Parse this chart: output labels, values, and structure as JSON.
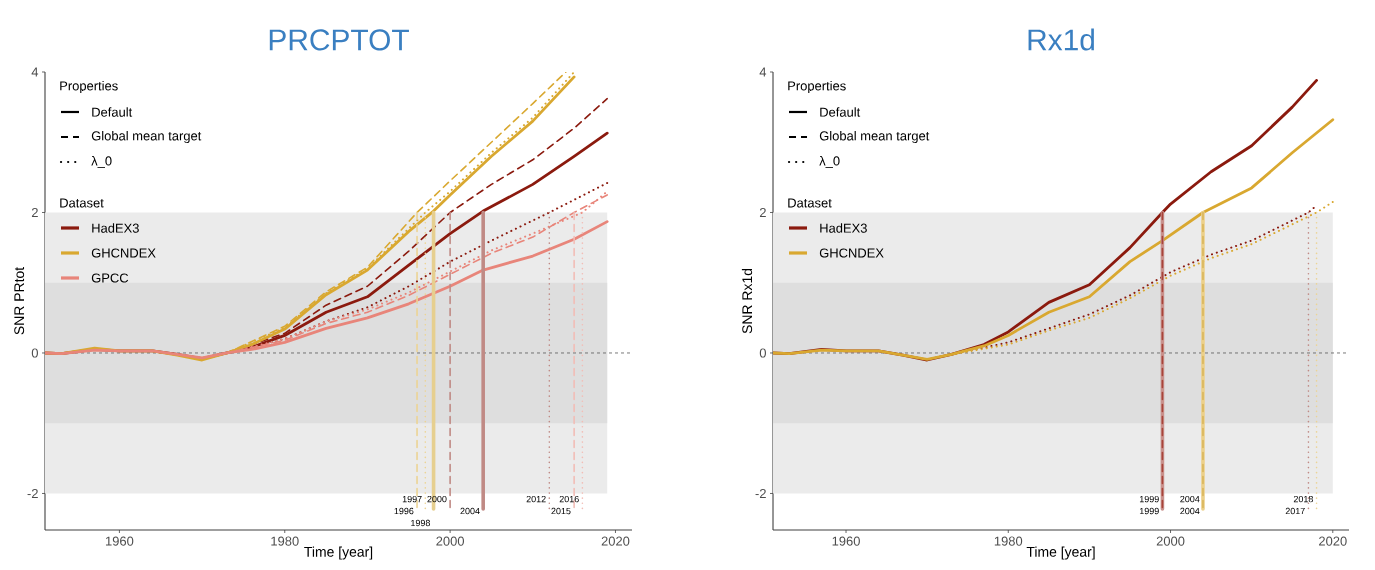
{
  "chart_data": [
    {
      "type": "line",
      "title": "PRCPTOT",
      "xlabel": "Time [year]",
      "ylabel": "SNR PRtot",
      "xlim": [
        1951,
        2022
      ],
      "ylim": [
        -2.52,
        4
      ],
      "xticks": [
        1960,
        1980,
        2000,
        2020
      ],
      "yticks": [
        -2,
        0,
        2,
        4
      ],
      "legend": "top left",
      "legend_title": "Dataset",
      "annotations": [
        "Properties",
        "Default",
        "Global mean target",
        "λ_0"
      ],
      "series": [
        {
          "name": "HadEX3",
          "color": "#8b1a0e",
          "line_style": "solid",
          "x": [
            1951,
            1953,
            1957,
            1960,
            1964,
            1967,
            1970,
            1973,
            1976,
            1980,
            1985,
            1990,
            1995,
            2000,
            2004,
            2010,
            2015,
            2019
          ],
          "values": [
            0,
            -0.01,
            0.05,
            0.03,
            0.03,
            -0.02,
            -0.08,
            0,
            0.08,
            0.25,
            0.58,
            0.8,
            1.25,
            1.7,
            2.02,
            2.4,
            2.8,
            3.13
          ]
        },
        {
          "color": "#8b1a0e",
          "line_style": "dashed",
          "x": [
            1973,
            1980,
            1985,
            1990,
            1995,
            2000,
            2005,
            2010,
            2015,
            2019
          ],
          "values": [
            0,
            0.28,
            0.68,
            0.95,
            1.45,
            2.0,
            2.4,
            2.75,
            3.2,
            3.62
          ]
        },
        {
          "color": "#8b1a0e",
          "line_style": "dotted",
          "x": [
            1973,
            1980,
            1985,
            1990,
            1995,
            2000,
            2005,
            2012,
            2019
          ],
          "values": [
            0,
            0.2,
            0.45,
            0.65,
            0.95,
            1.3,
            1.6,
            2.0,
            2.42
          ]
        },
        {
          "name": "GHCNDEX",
          "color": "#d9a830",
          "line_style": "solid",
          "x": [
            1951,
            1953,
            1957,
            1960,
            1964,
            1967,
            1970,
            1973,
            1976,
            1980,
            1985,
            1990,
            1995,
            1998,
            2000,
            2005,
            2010,
            2015
          ],
          "values": [
            0,
            -0.01,
            0.07,
            0.03,
            0.03,
            -0.03,
            -0.1,
            0,
            0.12,
            0.34,
            0.83,
            1.18,
            1.73,
            2.02,
            2.25,
            2.8,
            3.3,
            3.93
          ]
        },
        {
          "color": "#d9a830",
          "line_style": "dashed",
          "x": [
            1973,
            1980,
            1985,
            1990,
            1996,
            2000,
            2005,
            2010,
            2014
          ],
          "values": [
            0,
            0.38,
            0.87,
            1.22,
            2.0,
            2.45,
            3.0,
            3.55,
            4.0
          ]
        },
        {
          "color": "#d9a830",
          "line_style": "dotted",
          "x": [
            1973,
            1980,
            1985,
            1990,
            1997,
            2000,
            2005,
            2010,
            2015
          ],
          "values": [
            0,
            0.36,
            0.85,
            1.2,
            2.0,
            2.3,
            2.85,
            3.35,
            4.0
          ]
        },
        {
          "name": "GPCC",
          "color": "#e8857a",
          "line_style": "solid",
          "x": [
            1951,
            1953,
            1957,
            1960,
            1964,
            1967,
            1970,
            1973,
            1976,
            1980,
            1985,
            1990,
            1995,
            2000,
            2004,
            2010,
            2015,
            2019
          ],
          "values": [
            0,
            -0.01,
            0.04,
            0.03,
            0.03,
            -0.02,
            -0.07,
            0,
            0.05,
            0.15,
            0.35,
            0.5,
            0.7,
            0.95,
            1.18,
            1.38,
            1.62,
            1.87
          ]
        },
        {
          "color": "#e8857a",
          "line_style": "dashed",
          "x": [
            1973,
            1980,
            1985,
            1990,
            1995,
            2000,
            2005,
            2010,
            2015,
            2019
          ],
          "values": [
            0,
            0.18,
            0.42,
            0.58,
            0.82,
            1.12,
            1.42,
            1.65,
            2.0,
            2.25
          ]
        },
        {
          "color": "#e8857a",
          "line_style": "dotted",
          "x": [
            1973,
            1980,
            1985,
            1990,
            1995,
            2000,
            2005,
            2010,
            2016,
            2019
          ],
          "values": [
            0,
            0.2,
            0.45,
            0.62,
            0.86,
            1.16,
            1.46,
            1.7,
            2.0,
            2.3
          ]
        }
      ],
      "bands": [
        {
          "axis": "y",
          "from": -2,
          "to": 2,
          "color": "#ebebeb"
        },
        {
          "axis": "y",
          "from": -1,
          "to": 1,
          "color": "#dedede"
        }
      ],
      "ref_lines": [
        {
          "axis": "y",
          "value": 0,
          "color": "#555555",
          "line_style": "dashed"
        },
        {
          "axis": "x",
          "value": 1996,
          "label": "1996",
          "color": "#ecd495",
          "line_style": "dashed"
        },
        {
          "axis": "x",
          "value": 1997,
          "label": "1997",
          "color": "#ecd495",
          "line_style": "dotted"
        },
        {
          "axis": "x",
          "value": 1998,
          "label": "1998",
          "color": "#e6cf8f",
          "line_style": "solid"
        },
        {
          "axis": "x",
          "value": 2000,
          "label": "2000",
          "color": "#c08a85",
          "line_style": "dashed"
        },
        {
          "axis": "x",
          "value": 2004,
          "label": "2004",
          "color": "#c08a85",
          "line_style": "solid"
        },
        {
          "axis": "x",
          "value": 2012,
          "label": "2012",
          "color": "#c08a85",
          "line_style": "dotted"
        },
        {
          "axis": "x",
          "value": 2015,
          "label": "2015",
          "color": "#f2bdb6",
          "line_style": "dashed"
        },
        {
          "axis": "x",
          "value": 2016,
          "label": "2016",
          "color": "#f2bdb6",
          "line_style": "dotted"
        }
      ]
    },
    {
      "type": "line",
      "title": "Rx1d",
      "xlabel": "Time [year]",
      "ylabel": "SNR Rx1d",
      "xlim": [
        1951,
        2022
      ],
      "ylim": [
        -2.52,
        4
      ],
      "xticks": [
        1960,
        1980,
        2000,
        2020
      ],
      "yticks": [
        -2,
        0,
        2,
        4
      ],
      "legend": "top left",
      "legend_title": "Dataset",
      "annotations": [
        "Properties",
        "Default",
        "Global mean target",
        "λ_0"
      ],
      "series": [
        {
          "name": "HadEX3",
          "color": "#8b1a0e",
          "line_style": "solid",
          "x": [
            1951,
            1953,
            1957,
            1960,
            1964,
            1967,
            1970,
            1973,
            1977,
            1980,
            1985,
            1990,
            1995,
            1999,
            2000,
            2005,
            2010,
            2015,
            2018
          ],
          "values": [
            0,
            -0.01,
            0.05,
            0.03,
            0.03,
            -0.03,
            -0.1,
            -0.02,
            0.12,
            0.3,
            0.72,
            0.97,
            1.5,
            2.0,
            2.12,
            2.58,
            2.95,
            3.5,
            3.88
          ]
        },
        {
          "color": "#8b1a0e",
          "line_style": "dotted",
          "x": [
            1973,
            1980,
            1985,
            1990,
            1995,
            2000,
            2005,
            2010,
            2017,
            2018
          ],
          "values": [
            -0.02,
            0.15,
            0.35,
            0.55,
            0.82,
            1.15,
            1.4,
            1.6,
            2.0,
            2.1
          ]
        },
        {
          "name": "GHCNDEX",
          "color": "#d9a830",
          "line_style": "solid",
          "x": [
            1951,
            1953,
            1957,
            1960,
            1964,
            1967,
            1970,
            1973,
            1977,
            1980,
            1985,
            1990,
            1995,
            1999,
            2004,
            2010,
            2015,
            2020
          ],
          "values": [
            0,
            -0.01,
            0.04,
            0.03,
            0.03,
            -0.03,
            -0.09,
            -0.02,
            0.1,
            0.25,
            0.58,
            0.8,
            1.3,
            1.6,
            2.0,
            2.35,
            2.85,
            3.32
          ]
        },
        {
          "color": "#d9a830",
          "line_style": "dotted",
          "x": [
            1973,
            1980,
            1985,
            1990,
            1995,
            2000,
            2005,
            2010,
            2018,
            2020
          ],
          "values": [
            -0.02,
            0.12,
            0.32,
            0.5,
            0.78,
            1.1,
            1.35,
            1.55,
            2.0,
            2.15
          ]
        }
      ],
      "bands": [
        {
          "axis": "y",
          "from": -2,
          "to": 2,
          "color": "#ebebeb"
        },
        {
          "axis": "y",
          "from": -1,
          "to": 1,
          "color": "#dedede"
        }
      ],
      "ref_lines": [
        {
          "axis": "y",
          "value": 0,
          "color": "#555555",
          "line_style": "dashed"
        },
        {
          "axis": "x",
          "value": 1999,
          "label": "1999",
          "color": "#c9918c",
          "line_style": "solid"
        },
        {
          "axis": "x",
          "value": 1999,
          "label": "1999",
          "color": "#a8443a",
          "line_style": "dashed"
        },
        {
          "axis": "x",
          "value": 2004,
          "label": "2004",
          "color": "#ecd08a",
          "line_style": "solid"
        },
        {
          "axis": "x",
          "value": 2004,
          "label": "2004",
          "color": "#d9b55a",
          "line_style": "dashed"
        },
        {
          "axis": "x",
          "value": 2017,
          "label": "2017",
          "color": "#c08a85",
          "line_style": "dotted"
        },
        {
          "axis": "x",
          "value": 2018,
          "label": "2018",
          "color": "#ecd495",
          "line_style": "dotted"
        }
      ]
    }
  ]
}
